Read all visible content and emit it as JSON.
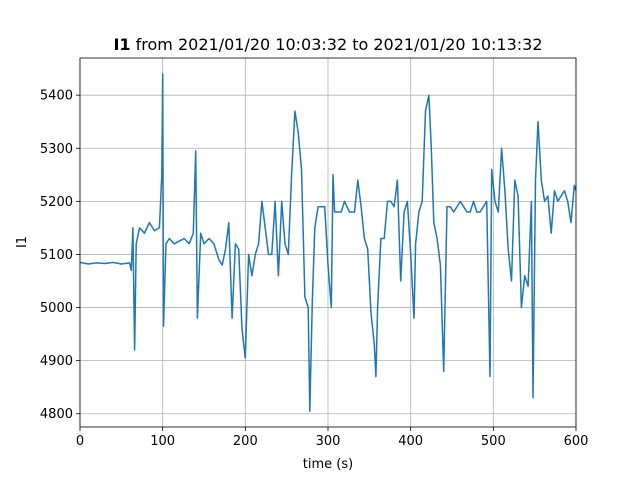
{
  "chart_data": {
    "type": "line",
    "title": {
      "prefix": "I1",
      "rest": " from 2021/01/20 10:03:32 to 2021/01/20 10:13:32"
    },
    "xlabel": "time (s)",
    "ylabel": "I1",
    "xlim": [
      0,
      600
    ],
    "ylim": [
      4775,
      5470
    ],
    "xticks": [
      0,
      100,
      200,
      300,
      400,
      500,
      600
    ],
    "yticks": [
      4800,
      4900,
      5000,
      5100,
      5200,
      5300,
      5400
    ],
    "grid": true,
    "series": [
      {
        "color": "#1f77b4",
        "points": [
          [
            0,
            5085
          ],
          [
            10,
            5082
          ],
          [
            20,
            5084
          ],
          [
            30,
            5083
          ],
          [
            40,
            5085
          ],
          [
            50,
            5082
          ],
          [
            60,
            5084
          ],
          [
            62,
            5070
          ],
          [
            64,
            5150
          ],
          [
            66,
            4920
          ],
          [
            68,
            5120
          ],
          [
            72,
            5150
          ],
          [
            78,
            5140
          ],
          [
            84,
            5160
          ],
          [
            90,
            5145
          ],
          [
            96,
            5150
          ],
          [
            99,
            5250
          ],
          [
            100,
            5440
          ],
          [
            101,
            4965
          ],
          [
            104,
            5120
          ],
          [
            108,
            5130
          ],
          [
            114,
            5120
          ],
          [
            120,
            5125
          ],
          [
            126,
            5130
          ],
          [
            132,
            5120
          ],
          [
            137,
            5140
          ],
          [
            140,
            5295
          ],
          [
            142,
            4980
          ],
          [
            146,
            5140
          ],
          [
            150,
            5120
          ],
          [
            156,
            5130
          ],
          [
            162,
            5120
          ],
          [
            168,
            5090
          ],
          [
            172,
            5080
          ],
          [
            176,
            5110
          ],
          [
            180,
            5160
          ],
          [
            184,
            4980
          ],
          [
            188,
            5120
          ],
          [
            192,
            5110
          ],
          [
            196,
            4960
          ],
          [
            200,
            4905
          ],
          [
            204,
            5100
          ],
          [
            208,
            5060
          ],
          [
            212,
            5100
          ],
          [
            216,
            5120
          ],
          [
            220,
            5200
          ],
          [
            224,
            5150
          ],
          [
            228,
            5100
          ],
          [
            232,
            5100
          ],
          [
            236,
            5200
          ],
          [
            240,
            5060
          ],
          [
            244,
            5200
          ],
          [
            248,
            5120
          ],
          [
            252,
            5100
          ],
          [
            256,
            5250
          ],
          [
            260,
            5370
          ],
          [
            264,
            5330
          ],
          [
            268,
            5260
          ],
          [
            272,
            5020
          ],
          [
            276,
            5000
          ],
          [
            278,
            4805
          ],
          [
            281,
            5010
          ],
          [
            284,
            5150
          ],
          [
            288,
            5190
          ],
          [
            292,
            5190
          ],
          [
            296,
            5190
          ],
          [
            300,
            5080
          ],
          [
            304,
            5000
          ],
          [
            306,
            5250
          ],
          [
            308,
            5180
          ],
          [
            312,
            5180
          ],
          [
            316,
            5180
          ],
          [
            320,
            5200
          ],
          [
            326,
            5180
          ],
          [
            332,
            5180
          ],
          [
            336,
            5240
          ],
          [
            340,
            5190
          ],
          [
            344,
            5130
          ],
          [
            348,
            5110
          ],
          [
            352,
            4990
          ],
          [
            356,
            4930
          ],
          [
            358,
            4870
          ],
          [
            360,
            5000
          ],
          [
            364,
            5130
          ],
          [
            368,
            5130
          ],
          [
            372,
            5200
          ],
          [
            376,
            5200
          ],
          [
            380,
            5190
          ],
          [
            384,
            5240
          ],
          [
            388,
            5050
          ],
          [
            392,
            5180
          ],
          [
            396,
            5200
          ],
          [
            400,
            5100
          ],
          [
            404,
            4980
          ],
          [
            406,
            5120
          ],
          [
            410,
            5180
          ],
          [
            414,
            5200
          ],
          [
            418,
            5370
          ],
          [
            422,
            5400
          ],
          [
            425,
            5300
          ],
          [
            428,
            5160
          ],
          [
            432,
            5130
          ],
          [
            436,
            5080
          ],
          [
            440,
            4880
          ],
          [
            444,
            5190
          ],
          [
            448,
            5190
          ],
          [
            452,
            5180
          ],
          [
            456,
            5190
          ],
          [
            460,
            5200
          ],
          [
            464,
            5190
          ],
          [
            468,
            5180
          ],
          [
            472,
            5180
          ],
          [
            476,
            5200
          ],
          [
            480,
            5180
          ],
          [
            484,
            5180
          ],
          [
            488,
            5190
          ],
          [
            492,
            5200
          ],
          [
            496,
            4870
          ],
          [
            498,
            5260
          ],
          [
            502,
            5200
          ],
          [
            506,
            5180
          ],
          [
            510,
            5300
          ],
          [
            514,
            5220
          ],
          [
            518,
            5110
          ],
          [
            522,
            5050
          ],
          [
            526,
            5240
          ],
          [
            530,
            5210
          ],
          [
            534,
            5000
          ],
          [
            538,
            5060
          ],
          [
            542,
            5040
          ],
          [
            546,
            5200
          ],
          [
            548,
            4830
          ],
          [
            551,
            5240
          ],
          [
            554,
            5350
          ],
          [
            558,
            5240
          ],
          [
            562,
            5200
          ],
          [
            566,
            5210
          ],
          [
            570,
            5140
          ],
          [
            574,
            5220
          ],
          [
            578,
            5200
          ],
          [
            582,
            5210
          ],
          [
            586,
            5220
          ],
          [
            590,
            5200
          ],
          [
            594,
            5160
          ],
          [
            598,
            5230
          ],
          [
            600,
            5220
          ]
        ]
      }
    ]
  }
}
